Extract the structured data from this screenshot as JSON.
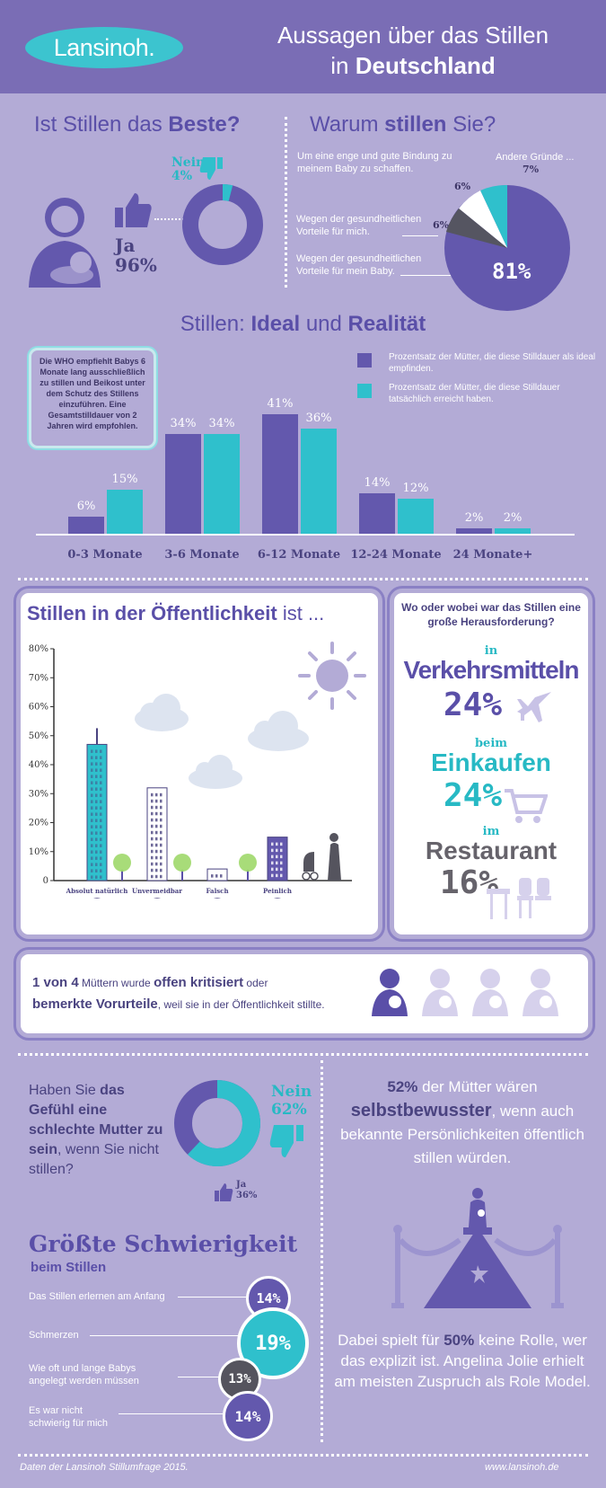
{
  "header": {
    "logo": "Lansinoh.",
    "title_line1": "Aussagen über das Stillen",
    "title_line2_pre": "in ",
    "title_line2_bold": "Deutschland"
  },
  "best": {
    "title_pre": "Ist Stillen das ",
    "title_bold": "Beste?",
    "no_label": "Nein",
    "no_value": "4%",
    "yes_label": "Ja",
    "yes_value": "96%"
  },
  "why": {
    "title_pre": "Warum ",
    "title_bold": "stillen",
    "title_post": " Sie?",
    "r1": "Um eine enge und gute Bindung zu meinem Baby zu schaffen.",
    "r1_value": "6%",
    "r2": "Wegen der gesundheitlichen Vorteile für mich.",
    "r2_value": "6%",
    "r3": "Wegen der gesundheitlichen Vorteile für mein Baby.",
    "r3_value": "81%",
    "r4": "Andere Gründe ...",
    "r4_value": "7%"
  },
  "ideal": {
    "title_pre": "Stillen: ",
    "title_b1": "Ideal",
    "title_mid": " und ",
    "title_b2": "Realität",
    "who_note": "Die WHO empfiehlt Babys 6 Monate lang ausschließlich zu stillen und Beikost unter dem Schutz des Stillens einzuführen. Eine Gesamtstilldauer von 2 Jahren wird empfohlen.",
    "legend_ideal": "Prozentsatz der Mütter, die diese Stilldauer als ideal empfinden.",
    "legend_real": "Prozentsatz der Mütter, die diese Stilldauer tatsächlich erreicht haben."
  },
  "chart_data": [
    {
      "type": "bar",
      "categories": [
        "0-3 Monate",
        "3-6 Monate",
        "6-12 Monate",
        "12-24 Monate",
        "24 Monate+"
      ],
      "series": [
        {
          "name": "Prozentsatz der Mütter, die diese Stilldauer als ideal empfinden.",
          "values": [
            6,
            34,
            41,
            14,
            2
          ],
          "labels": [
            "6%",
            "34%",
            "41%",
            "14%",
            "2%"
          ]
        },
        {
          "name": "Prozentsatz der Mütter, die diese Stilldauer tatsächlich erreicht haben.",
          "values": [
            15,
            34,
            36,
            12,
            2
          ],
          "labels": [
            "15%",
            "34%",
            "36%",
            "12%",
            "2%"
          ]
        }
      ],
      "colors": [
        "#6358ad",
        "#2fc0cc"
      ]
    },
    {
      "type": "bar",
      "title": "Stillen in der Öffentlichkeit ist ...",
      "categories": [
        "Absolut natürlich",
        "Unvermeidbar",
        "Falsch",
        "Peinlich"
      ],
      "values": [
        47,
        32,
        4,
        15
      ],
      "ylim": [
        0,
        80
      ],
      "yticks": [
        "0",
        "10%",
        "20%",
        "30%",
        "40%",
        "50%",
        "60%",
        "70%",
        "80%"
      ],
      "colors": [
        "#2fc0cc",
        "#ffffff",
        "#ffffff",
        "#6358ad"
      ]
    }
  ],
  "public": {
    "title_bold": "Stillen in der Öffentlichkeit",
    "title_post": " ist ..."
  },
  "challenge": {
    "question": "Wo oder wobei war das Stillen eine große Herausforderung?",
    "c1_pre": "in",
    "c1": "Verkehrsmitteln",
    "c1_value": "24%",
    "c2_pre": "beim",
    "c2": "Einkaufen",
    "c2_value": "24%",
    "c3_pre": "im",
    "c3": "Restaurant",
    "c3_value": "16%"
  },
  "critic": {
    "t1": "1 von 4",
    "t2": " Müttern wurde ",
    "t3": "offen kritisiert",
    "t4": " oder",
    "t5": "bemerkte Vorurteile",
    "t6": ", weil sie in der Öffentlichkeit stillte."
  },
  "bad": {
    "q1": "Haben Sie ",
    "q2": "das Gefühl eine schlechte Mutter zu sein",
    "q3": ", wenn Sie nicht stillen?",
    "no_label": "Nein",
    "no_value": "62%",
    "yes_label": "Ja",
    "yes_value": "36%"
  },
  "celeb": {
    "pct": "52%",
    "t1": " der Mütter wären",
    "t2": "selbstbewusster",
    "t3": ", wenn auch bekannte Persönlichkeiten öffentlich stillen würden.",
    "b1": "Dabei spielt für ",
    "b_pct": "50%",
    "b2": " keine Rolle, wer das explizit ist. Angelina Jolie erhielt am meisten Zuspruch als Role Model."
  },
  "difficulty": {
    "title": "Größte Schwierigkeit",
    "subtitle": "beim Stillen",
    "items": [
      {
        "label": "Das Stillen erlernen am Anfang",
        "value": "14%"
      },
      {
        "label": "Schmerzen",
        "value": "19%"
      },
      {
        "label": "Wie oft und lange Babys angelegt werden müssen",
        "value": "13%"
      },
      {
        "label": "Es war nicht schwierig für mich",
        "value": "14%"
      }
    ]
  },
  "footer": {
    "source": "Daten der Lansinoh Stillumfrage 2015.",
    "url": "www.lansinoh.de"
  }
}
